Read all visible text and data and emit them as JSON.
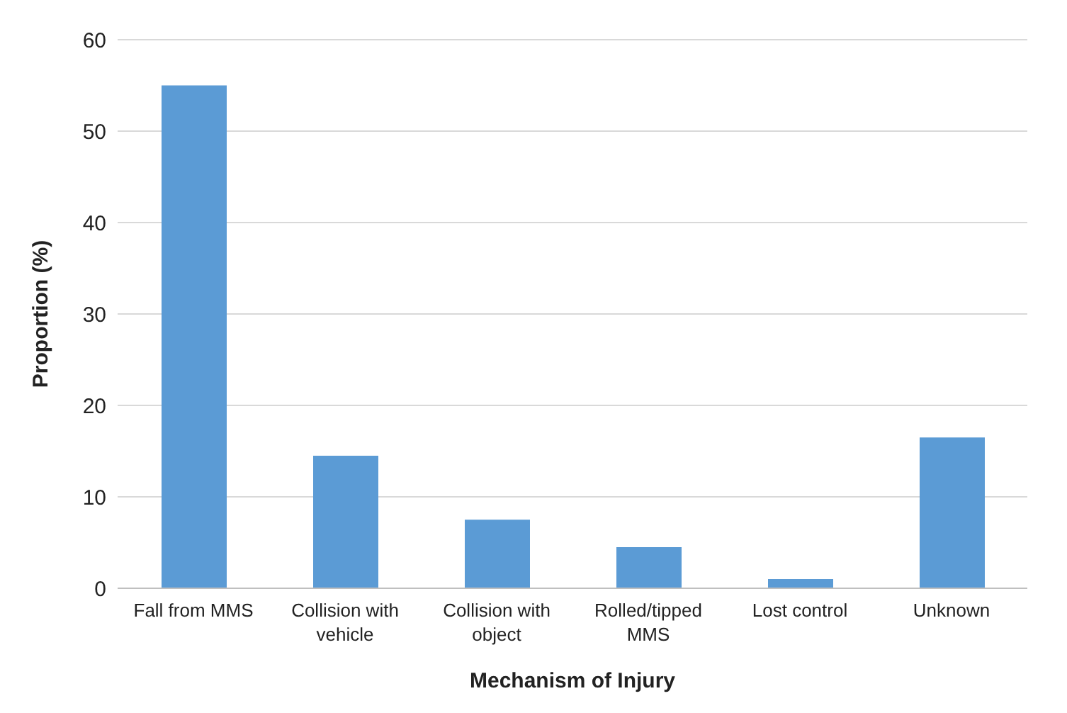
{
  "chart_data": {
    "type": "bar",
    "xlabel": "Mechanism  of Injury",
    "ylabel": "Proportion (%)",
    "categories": [
      "Fall from MMS",
      "Collision with vehicle",
      "Collision with object",
      "Rolled/tipped MMS",
      "Lost control",
      "Unknown"
    ],
    "values": [
      55,
      14.5,
      7.5,
      4.5,
      1,
      16.5
    ],
    "color": "#5b9bd5",
    "ylim": [
      0,
      60
    ],
    "yticks": [
      0,
      10,
      20,
      30,
      40,
      50,
      60
    ],
    "grid": "y"
  }
}
